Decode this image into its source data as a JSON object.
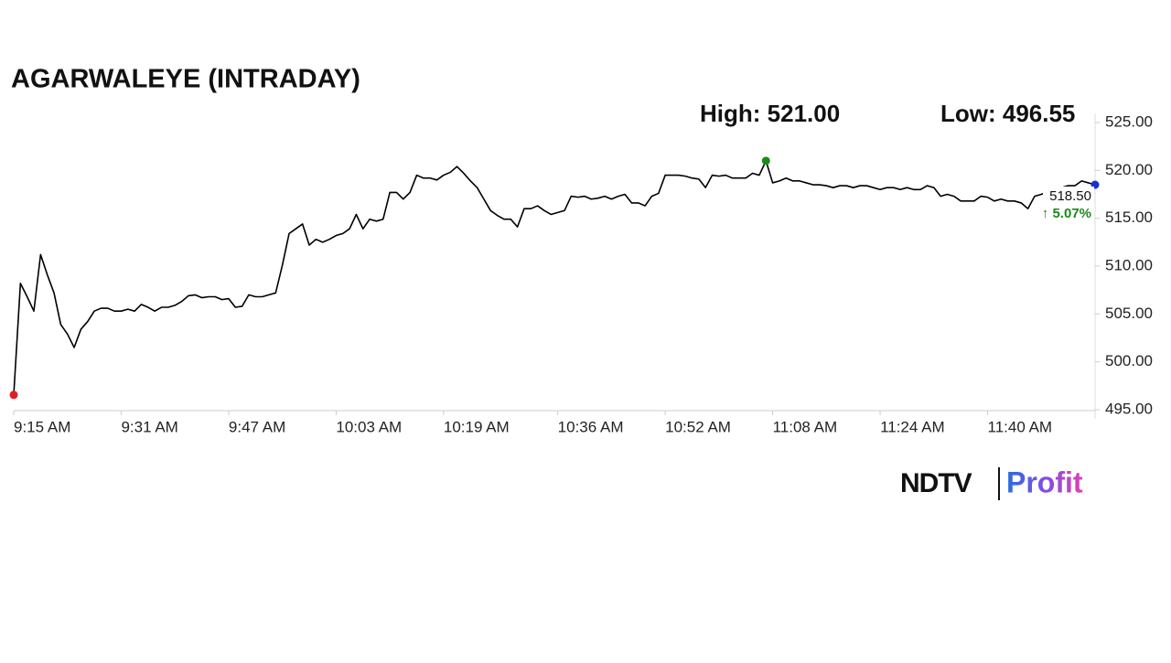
{
  "chart_data": {
    "type": "line",
    "title": "AGARWALEYE (INTRADAY)",
    "high_label": "High: 521.00",
    "low_label": "Low: 496.55",
    "last_label": "518.50",
    "change_label": "↑ 5.07%",
    "x": [
      "9:15 AM",
      "9:16 AM",
      "9:17 AM",
      "9:18 AM",
      "9:19 AM",
      "9:20 AM",
      "9:21 AM",
      "9:22 AM",
      "9:23 AM",
      "9:24 AM",
      "9:25 AM",
      "9:26 AM",
      "9:27 AM",
      "9:28 AM",
      "9:29 AM",
      "9:30 AM",
      "9:31 AM",
      "9:32 AM",
      "9:33 AM",
      "9:34 AM",
      "9:35 AM",
      "9:36 AM",
      "9:37 AM",
      "9:38 AM",
      "9:39 AM",
      "9:40 AM",
      "9:41 AM",
      "9:42 AM",
      "9:43 AM",
      "9:44 AM",
      "9:45 AM",
      "9:46 AM",
      "9:47 AM",
      "9:48 AM",
      "9:49 AM",
      "9:50 AM",
      "9:51 AM",
      "9:52 AM",
      "9:53 AM",
      "9:54 AM",
      "9:55 AM",
      "9:56 AM",
      "9:57 AM",
      "9:58 AM",
      "9:59 AM",
      "10:00 AM",
      "10:01 AM",
      "10:02 AM",
      "10:03 AM",
      "10:04 AM",
      "10:05 AM",
      "10:06 AM",
      "10:07 AM",
      "10:08 AM",
      "10:09 AM",
      "10:10 AM",
      "10:11 AM",
      "10:12 AM",
      "10:13 AM",
      "10:14 AM",
      "10:15 AM",
      "10:16 AM",
      "10:17 AM",
      "10:18 AM",
      "10:19 AM",
      "10:20 AM",
      "10:21 AM",
      "10:22 AM",
      "10:23 AM",
      "10:24 AM",
      "10:25 AM",
      "10:26 AM",
      "10:27 AM",
      "10:28 AM",
      "10:29 AM",
      "10:30 AM",
      "10:31 AM",
      "10:32 AM",
      "10:33 AM",
      "10:34 AM",
      "10:35 AM",
      "10:36 AM",
      "10:37 AM",
      "10:38 AM",
      "10:39 AM",
      "10:40 AM",
      "10:41 AM",
      "10:42 AM",
      "10:43 AM",
      "10:44 AM",
      "10:45 AM",
      "10:46 AM",
      "10:47 AM",
      "10:48 AM",
      "10:49 AM",
      "10:50 AM",
      "10:51 AM",
      "10:52 AM",
      "10:53 AM",
      "10:54 AM",
      "10:55 AM",
      "10:56 AM",
      "10:57 AM",
      "10:58 AM",
      "10:59 AM",
      "11:00 AM",
      "11:01 AM",
      "11:02 AM",
      "11:03 AM",
      "11:04 AM",
      "11:05 AM",
      "11:06 AM",
      "11:07 AM",
      "11:08 AM",
      "11:09 AM",
      "11:10 AM",
      "11:11 AM",
      "11:12 AM",
      "11:13 AM",
      "11:14 AM",
      "11:15 AM",
      "11:16 AM",
      "11:17 AM",
      "11:18 AM",
      "11:19 AM",
      "11:20 AM",
      "11:21 AM",
      "11:22 AM",
      "11:23 AM",
      "11:24 AM",
      "11:25 AM",
      "11:26 AM",
      "11:27 AM",
      "11:28 AM",
      "11:29 AM",
      "11:30 AM",
      "11:31 AM",
      "11:32 AM",
      "11:33 AM",
      "11:34 AM",
      "11:35 AM",
      "11:36 AM",
      "11:37 AM",
      "11:38 AM",
      "11:39 AM",
      "11:40 AM",
      "11:41 AM",
      "11:42 AM",
      "11:43 AM",
      "11:44 AM",
      "11:45 AM",
      "11:46 AM",
      "11:47 AM",
      "11:48 AM",
      "11:49 AM",
      "11:50 AM",
      "11:51 AM",
      "11:52 AM",
      "11:53 AM",
      "11:54 AM",
      "11:55 AM",
      "11:56 AM"
    ],
    "series": [
      {
        "color": "#000000",
        "values": [
          496.55,
          508.2,
          506.8,
          505.3,
          511.2,
          509.1,
          507.2,
          503.9,
          502.9,
          501.5,
          503.4,
          504.2,
          505.3,
          505.6,
          505.6,
          505.3,
          505.3,
          505.5,
          505.3,
          506.0,
          505.7,
          505.3,
          505.7,
          505.7,
          505.9,
          506.3,
          506.9,
          507.0,
          506.7,
          506.8,
          506.8,
          506.5,
          506.6,
          505.7,
          505.8,
          507.0,
          506.8,
          506.8,
          507.0,
          507.2,
          510.1,
          513.4,
          513.9,
          514.4,
          512.2,
          512.8,
          512.5,
          512.8,
          513.2,
          513.4,
          513.9,
          515.4,
          513.9,
          514.9,
          514.7,
          514.9,
          517.7,
          517.7,
          517.0,
          517.7,
          519.5,
          519.2,
          519.2,
          519.0,
          519.5,
          519.8,
          520.4,
          519.7,
          518.9,
          518.2,
          517.0,
          515.8,
          515.3,
          514.9,
          514.9,
          514.1,
          516.0,
          516.0,
          516.3,
          515.8,
          515.4,
          515.6,
          515.8,
          517.3,
          517.2,
          517.3,
          517.0,
          517.1,
          517.3,
          517.0,
          517.3,
          517.5,
          516.6,
          516.6,
          516.3,
          517.3,
          517.6,
          519.5,
          519.5,
          519.5,
          519.4,
          519.2,
          519.1,
          518.2,
          519.5,
          519.4,
          519.5,
          519.2,
          519.2,
          519.2,
          519.7,
          519.5,
          521.0,
          518.7,
          518.9,
          519.2,
          518.9,
          518.9,
          518.7,
          518.5,
          518.5,
          518.4,
          518.2,
          518.4,
          518.4,
          518.2,
          518.4,
          518.4,
          518.2,
          518.0,
          518.2,
          518.2,
          518.0,
          518.2,
          518.0,
          518.0,
          518.4,
          518.2,
          517.3,
          517.5,
          517.3,
          516.8,
          516.8,
          516.8,
          517.3,
          517.2,
          516.8,
          517.0,
          516.8,
          516.8,
          516.6,
          516.0,
          517.3,
          517.5,
          517.8,
          518.0,
          518.2,
          518.4,
          518.4,
          518.9,
          518.7,
          518.5
        ]
      }
    ],
    "low_color": "#e02020",
    "high_color": "#1a8a1a",
    "last_color": "#1a2ed8",
    "change_color": "#1a8a1a",
    "xticks": [
      "9:15 AM",
      "9:31 AM",
      "9:47 AM",
      "10:03 AM",
      "10:19 AM",
      "10:36 AM",
      "10:52 AM",
      "11:08 AM",
      "11:24 AM",
      "11:40 AM"
    ],
    "ylim": [
      495,
      525
    ],
    "yticks": [
      {
        "value": 495,
        "label": "495.00"
      },
      {
        "value": 500,
        "label": "500.00"
      },
      {
        "value": 505,
        "label": "505.00"
      },
      {
        "value": 510,
        "label": "510.00"
      },
      {
        "value": 515,
        "label": "515.00"
      },
      {
        "value": 520,
        "label": "520.00"
      },
      {
        "value": 525,
        "label": "525.00"
      }
    ],
    "grid": false
  },
  "brand": {
    "name": "NDTV",
    "product": "Profit"
  }
}
